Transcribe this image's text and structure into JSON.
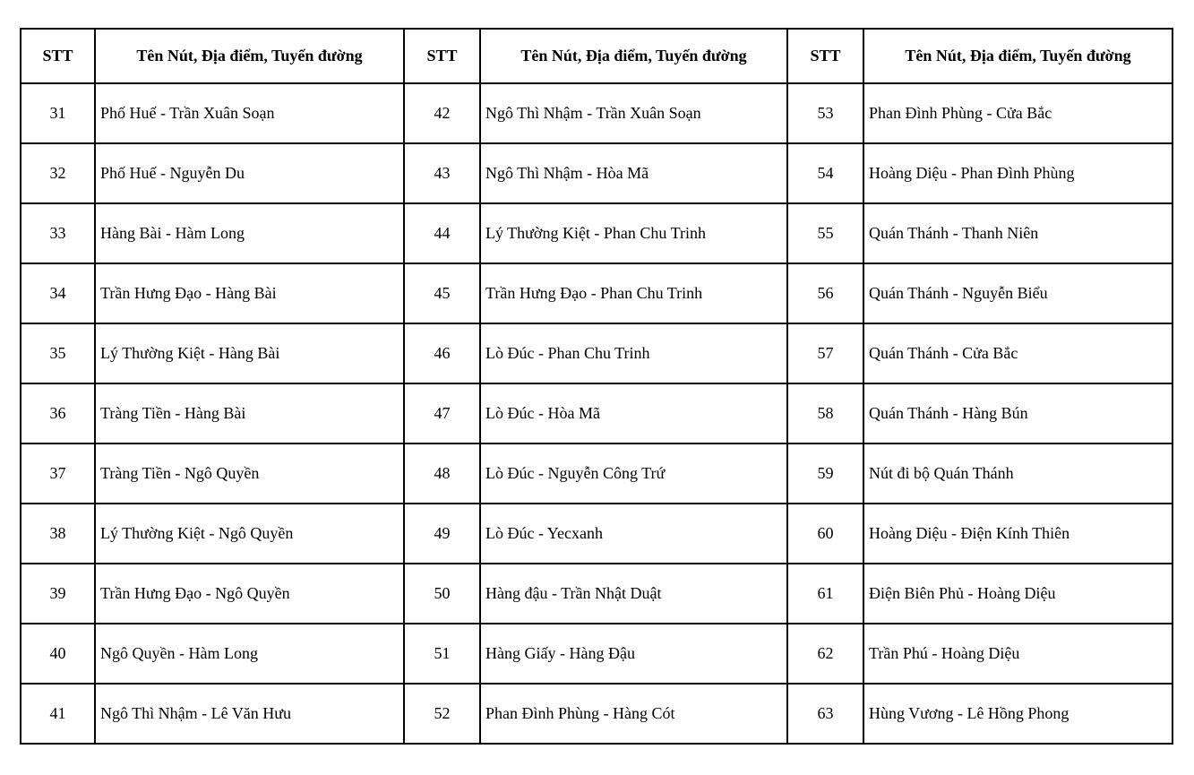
{
  "colors": {
    "background": "#ffffff",
    "border": "#000000",
    "text": "#000000"
  },
  "table": {
    "header_stt": "STT",
    "header_name": "Tên Nút, Địa điểm, Tuyến đường",
    "rows": [
      [
        "31",
        "Phố Huế - Trần Xuân Soạn",
        "42",
        "Ngô Thì Nhậm - Trần Xuân Soạn",
        "53",
        "Phan Đình Phùng - Cửa Bắc"
      ],
      [
        "32",
        "Phố Huế - Nguyễn Du",
        "43",
        "Ngô Thì Nhậm - Hòa Mã",
        "54",
        "Hoàng Diệu - Phan Đình Phùng"
      ],
      [
        "33",
        "Hàng Bài - Hàm Long",
        "44",
        "Lý Thường Kiệt - Phan Chu Trinh",
        "55",
        "Quán Thánh - Thanh Niên"
      ],
      [
        "34",
        "Trần Hưng Đạo - Hàng Bài",
        "45",
        "Trần Hưng Đạo - Phan Chu Trinh",
        "56",
        "Quán Thánh - Nguyễn Biểu"
      ],
      [
        "35",
        "Lý Thường Kiệt - Hàng Bài",
        "46",
        "Lò Đúc - Phan Chu Trinh",
        "57",
        "Quán Thánh - Cửa Bắc"
      ],
      [
        "36",
        "Tràng Tiền - Hàng Bài",
        "47",
        "Lò Đúc - Hòa Mã",
        "58",
        "Quán Thánh - Hàng Bún"
      ],
      [
        "37",
        "Tràng Tiền - Ngô Quyền",
        "48",
        "Lò Đúc - Nguyễn Công Trứ",
        "59",
        "Nút đi bộ Quán Thánh"
      ],
      [
        "38",
        "Lý Thường Kiệt - Ngô Quyền",
        "49",
        "Lò Đúc - Yecxanh",
        "60",
        "Hoàng Diệu - Điện Kính Thiên"
      ],
      [
        "39",
        "Trần Hưng Đạo - Ngô Quyền",
        "50",
        "Hàng đậu - Trần Nhật Duật",
        "61",
        "Điện Biên Phủ - Hoàng Diệu"
      ],
      [
        "40",
        "Ngô Quyền - Hàm Long",
        "51",
        "Hàng Giấy - Hàng Đậu",
        "62",
        "Trần Phú - Hoàng Diệu"
      ],
      [
        "41",
        "Ngô Thì Nhậm - Lê Văn Hưu",
        "52",
        "Phan Đình Phùng - Hàng Cót",
        "63",
        "Hùng Vương - Lê Hồng Phong"
      ]
    ]
  }
}
